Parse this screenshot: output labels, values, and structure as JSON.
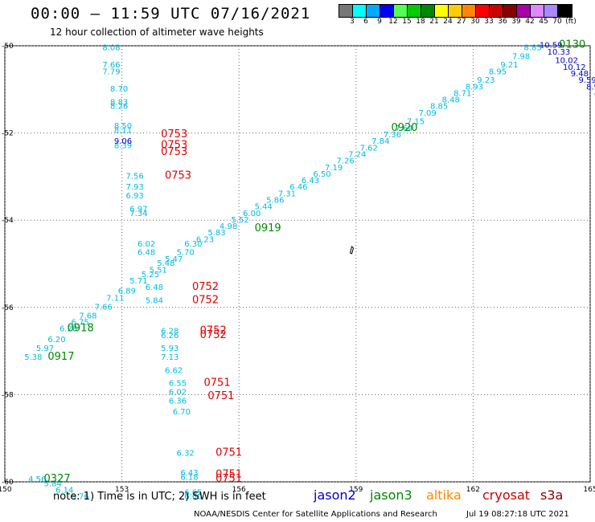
{
  "header": {
    "title": "00:00 – 11:59 UTC 07/16/2021",
    "subtitle": "12 hour collection of altimeter wave heights"
  },
  "colorbar": {
    "colors": [
      "#777777",
      "#00ffff",
      "#00aaff",
      "#0000ff",
      "#55ff55",
      "#00cc00",
      "#008800",
      "#ffff00",
      "#ffcc00",
      "#ff8800",
      "#ff0000",
      "#cc0000",
      "#880000",
      "#aa00aa",
      "#dd88ff",
      "#aa88ff",
      "#000000"
    ],
    "ticks": [
      "3",
      "6",
      "9",
      "12",
      "15",
      "18",
      "21",
      "24",
      "27",
      "30",
      "33",
      "36",
      "39",
      "42",
      "45",
      "70",
      "(ft)"
    ]
  },
  "axes": {
    "x_ticks": [
      "150",
      "153",
      "156",
      "159",
      "162",
      "165"
    ],
    "y_ticks": [
      "-50",
      "-52",
      "-54",
      "-56",
      "-58",
      "-60"
    ]
  },
  "tracks": [
    {
      "satellite": "s3a",
      "color": "#00bbdd",
      "points": [
        {
          "lon": 150.5,
          "lat": -57.2,
          "v": "5.38"
        },
        {
          "lon": 150.8,
          "lat": -57.0,
          "v": "5.97"
        },
        {
          "lon": 151.1,
          "lat": -56.8,
          "v": "6.20"
        },
        {
          "lon": 151.4,
          "lat": -56.55,
          "v": "6.28"
        },
        {
          "lon": 151.7,
          "lat": -56.4,
          "v": "6.75"
        },
        {
          "lon": 151.9,
          "lat": -56.25,
          "v": "7.68"
        },
        {
          "lon": 152.3,
          "lat": -56.05,
          "v": "7.66"
        },
        {
          "lon": 152.6,
          "lat": -55.85,
          "v": "7.11"
        },
        {
          "lon": 152.9,
          "lat": -55.68,
          "v": "6.89"
        },
        {
          "lon": 153.2,
          "lat": -55.45,
          "v": "5.71"
        },
        {
          "lon": 153.5,
          "lat": -55.3,
          "v": "5.25"
        },
        {
          "lon": 153.7,
          "lat": -55.2,
          "v": "5.51"
        },
        {
          "lon": 153.9,
          "lat": -55.05,
          "v": "5.48"
        },
        {
          "lon": 154.1,
          "lat": -54.95,
          "v": "5.47"
        },
        {
          "lon": 154.4,
          "lat": -54.8,
          "v": "5.70"
        },
        {
          "lon": 154.6,
          "lat": -54.6,
          "v": "6.30"
        },
        {
          "lon": 154.9,
          "lat": -54.5,
          "v": "6.23"
        },
        {
          "lon": 155.2,
          "lat": -54.35,
          "v": "5.83"
        },
        {
          "lon": 155.5,
          "lat": -54.2,
          "v": "4.98"
        },
        {
          "lon": 155.8,
          "lat": -54.05,
          "v": "5.52"
        },
        {
          "lon": 156.1,
          "lat": -53.9,
          "v": "6.00"
        },
        {
          "lon": 156.4,
          "lat": -53.75,
          "v": "5.44"
        },
        {
          "lon": 156.7,
          "lat": -53.6,
          "v": "5.86"
        },
        {
          "lon": 157.0,
          "lat": -53.45,
          "v": "7.31"
        },
        {
          "lon": 157.3,
          "lat": -53.3,
          "v": "6.46"
        },
        {
          "lon": 157.6,
          "lat": -53.15,
          "v": "6.43"
        },
        {
          "lon": 157.9,
          "lat": -53.0,
          "v": "6.50"
        },
        {
          "lon": 158.2,
          "lat": -52.85,
          "v": "7.19"
        },
        {
          "lon": 158.5,
          "lat": -52.7,
          "v": "7.26"
        },
        {
          "lon": 158.8,
          "lat": -52.55,
          "v": "7.24"
        },
        {
          "lon": 159.1,
          "lat": -52.4,
          "v": "7.62"
        },
        {
          "lon": 159.4,
          "lat": -52.25,
          "v": "7.84"
        },
        {
          "lon": 159.7,
          "lat": -52.1,
          "v": "7.36"
        },
        {
          "lon": 160.0,
          "lat": -51.95,
          "v": "7.64"
        },
        {
          "lon": 160.3,
          "lat": -51.8,
          "v": "7.15"
        },
        {
          "lon": 160.6,
          "lat": -51.6,
          "v": "7.09"
        },
        {
          "lon": 160.9,
          "lat": -51.45,
          "v": "8.85"
        },
        {
          "lon": 161.2,
          "lat": -51.3,
          "v": "8.48"
        },
        {
          "lon": 161.5,
          "lat": -51.15,
          "v": "8.71"
        },
        {
          "lon": 161.8,
          "lat": -51.0,
          "v": "8.93"
        },
        {
          "lon": 162.1,
          "lat": -50.85,
          "v": "9.23"
        },
        {
          "lon": 162.4,
          "lat": -50.65,
          "v": "8.95"
        },
        {
          "lon": 162.7,
          "lat": -50.5,
          "v": "9.21"
        },
        {
          "lon": 163.0,
          "lat": -50.3,
          "v": "7.98"
        },
        {
          "lon": 163.3,
          "lat": -50.1,
          "v": "8.85"
        }
      ]
    },
    {
      "satellite": "s3a",
      "color": "#00bbdd",
      "points": [
        {
          "lon": 152.5,
          "lat": -50.1,
          "v": "8.08"
        },
        {
          "lon": 152.5,
          "lat": -50.5,
          "v": "7.66"
        },
        {
          "lon": 152.5,
          "lat": -50.65,
          "v": "7.79"
        },
        {
          "lon": 152.7,
          "lat": -51.05,
          "v": "8.70"
        },
        {
          "lon": 152.7,
          "lat": -51.35,
          "v": "8.83"
        },
        {
          "lon": 152.7,
          "lat": -51.45,
          "v": "8.26"
        },
        {
          "lon": 152.8,
          "lat": -51.9,
          "v": "8.50"
        },
        {
          "lon": 152.8,
          "lat": -52.0,
          "v": "8.11"
        },
        {
          "lon": 152.8,
          "lat": -52.35,
          "v": "8.39"
        },
        {
          "lon": 153.1,
          "lat": -53.05,
          "v": "7.56"
        },
        {
          "lon": 153.1,
          "lat": -53.3,
          "v": "7.93"
        },
        {
          "lon": 153.1,
          "lat": -53.5,
          "v": "6.93"
        },
        {
          "lon": 153.2,
          "lat": -53.8,
          "v": "6.97"
        },
        {
          "lon": 153.2,
          "lat": -53.9,
          "v": "7.34"
        },
        {
          "lon": 153.4,
          "lat": -54.6,
          "v": "6.02"
        },
        {
          "lon": 153.4,
          "lat": -54.8,
          "v": "6.48"
        },
        {
          "lon": 153.6,
          "lat": -55.6,
          "v": "6.48"
        },
        {
          "lon": 153.6,
          "lat": -55.9,
          "v": "5.84"
        },
        {
          "lon": 154.0,
          "lat": -56.6,
          "v": "6.28"
        },
        {
          "lon": 154.0,
          "lat": -56.7,
          "v": "6.26"
        },
        {
          "lon": 154.0,
          "lat": -57.0,
          "v": "5.93"
        },
        {
          "lon": 154.0,
          "lat": -57.2,
          "v": "7.13"
        },
        {
          "lon": 154.1,
          "lat": -57.5,
          "v": "6.62"
        },
        {
          "lon": 154.2,
          "lat": -57.8,
          "v": "6.55"
        },
        {
          "lon": 154.2,
          "lat": -58.0,
          "v": "6.02"
        },
        {
          "lon": 154.2,
          "lat": -58.2,
          "v": "6.36"
        },
        {
          "lon": 154.3,
          "lat": -58.45,
          "v": "6.70"
        },
        {
          "lon": 154.4,
          "lat": -59.4,
          "v": "6.32"
        },
        {
          "lon": 154.5,
          "lat": -59.85,
          "v": "6.43"
        },
        {
          "lon": 154.5,
          "lat": -59.95,
          "v": "6.18"
        },
        {
          "lon": 154.6,
          "lat": -60.3,
          "v": "6.65"
        },
        {
          "lon": 154.6,
          "lat": -60.4,
          "v": "6.60"
        }
      ]
    },
    {
      "satellite": "s3a",
      "color": "#00bbdd",
      "points": [
        {
          "lon": 150.6,
          "lat": -60.0,
          "v": "4.56"
        },
        {
          "lon": 151.0,
          "lat": -60.1,
          "v": "5.84"
        },
        {
          "lon": 151.3,
          "lat": -60.25,
          "v": "6.14"
        },
        {
          "lon": 151.7,
          "lat": -60.4,
          "v": "5.76"
        }
      ]
    },
    {
      "satellite": "jason2",
      "color": "#0000cc",
      "points": [
        {
          "lon": 152.8,
          "lat": -52.25,
          "v": "9.06"
        },
        {
          "lon": 163.7,
          "lat": -50.05,
          "v": "10.59"
        },
        {
          "lon": 163.9,
          "lat": -50.2,
          "v": "10.33"
        },
        {
          "lon": 164.1,
          "lat": -50.4,
          "v": "10.02"
        },
        {
          "lon": 164.3,
          "lat": -50.55,
          "v": "10.12"
        },
        {
          "lon": 164.5,
          "lat": -50.7,
          "v": "9.48"
        },
        {
          "lon": 164.7,
          "lat": -50.85,
          "v": "9.59"
        },
        {
          "lon": 164.9,
          "lat": -51.0,
          "v": "8.91"
        },
        {
          "lon": 165.1,
          "lat": -51.2,
          "v": "9.50"
        },
        {
          "lon": 165.3,
          "lat": -51.35,
          "v": "9.21"
        },
        {
          "lon": 165.5,
          "lat": -51.5,
          "v": "9.19"
        }
      ]
    }
  ],
  "pass_times": [
    {
      "satellite": "jason3",
      "color": "#008800",
      "lon": 151.1,
      "lat": -57.2,
      "v": "0917"
    },
    {
      "satellite": "jason3",
      "color": "#008800",
      "lon": 151.6,
      "lat": -56.55,
      "v": "0918"
    },
    {
      "satellite": "jason3",
      "color": "#008800",
      "lon": 156.4,
      "lat": -54.25,
      "v": "0919"
    },
    {
      "satellite": "jason3",
      "color": "#008800",
      "lon": 159.9,
      "lat": -51.95,
      "v": "0920"
    },
    {
      "satellite": "jason3",
      "color": "#008800",
      "lon": 151.0,
      "lat": -60.0,
      "v": "0327"
    },
    {
      "satellite": "jason3",
      "color": "#008800",
      "lon": 164.2,
      "lat": -50.05,
      "v": "0130"
    },
    {
      "satellite": "cryosat",
      "color": "#dd0000",
      "lon": 154.0,
      "lat": -52.1,
      "v": "0753"
    },
    {
      "satellite": "cryosat",
      "color": "#dd0000",
      "lon": 154.0,
      "lat": -52.35,
      "v": "0753"
    },
    {
      "satellite": "cryosat",
      "color": "#dd0000",
      "lon": 154.0,
      "lat": -52.5,
      "v": "0753"
    },
    {
      "satellite": "cryosat",
      "color": "#dd0000",
      "lon": 154.1,
      "lat": -53.05,
      "v": "0753"
    },
    {
      "satellite": "cryosat",
      "color": "#dd0000",
      "lon": 154.8,
      "lat": -55.6,
      "v": "0752"
    },
    {
      "satellite": "cryosat",
      "color": "#dd0000",
      "lon": 154.8,
      "lat": -55.9,
      "v": "0752"
    },
    {
      "satellite": "cryosat",
      "color": "#dd0000",
      "lon": 155.0,
      "lat": -56.6,
      "v": "0752"
    },
    {
      "satellite": "cryosat",
      "color": "#dd0000",
      "lon": 155.0,
      "lat": -56.7,
      "v": "0752"
    },
    {
      "satellite": "cryosat",
      "color": "#dd0000",
      "lon": 155.1,
      "lat": -57.8,
      "v": "0751"
    },
    {
      "satellite": "cryosat",
      "color": "#dd0000",
      "lon": 155.2,
      "lat": -58.1,
      "v": "0751"
    },
    {
      "satellite": "cryosat",
      "color": "#dd0000",
      "lon": 155.4,
      "lat": -59.4,
      "v": "0751"
    },
    {
      "satellite": "cryosat",
      "color": "#dd0000",
      "lon": 155.4,
      "lat": -59.9,
      "v": "0751"
    },
    {
      "satellite": "cryosat",
      "color": "#dd0000",
      "lon": 155.4,
      "lat": -60.0,
      "v": "0751"
    }
  ],
  "footer": {
    "note": "note:  1) Time is in UTC;  2) SWH is in feet",
    "legend": [
      {
        "label": "jason2",
        "color": "#0000cc"
      },
      {
        "label": "jason3",
        "color": "#008800"
      },
      {
        "label": "altika",
        "color": "#ff8800"
      },
      {
        "label": "cryosat",
        "color": "#cc0000"
      },
      {
        "label": "s3a",
        "color": "#880000"
      }
    ],
    "credit": "NOAA/NESDIS Center for Satellite Applications and Research",
    "timestamp": "Jul 19 08:27:18 UTC 2021"
  }
}
